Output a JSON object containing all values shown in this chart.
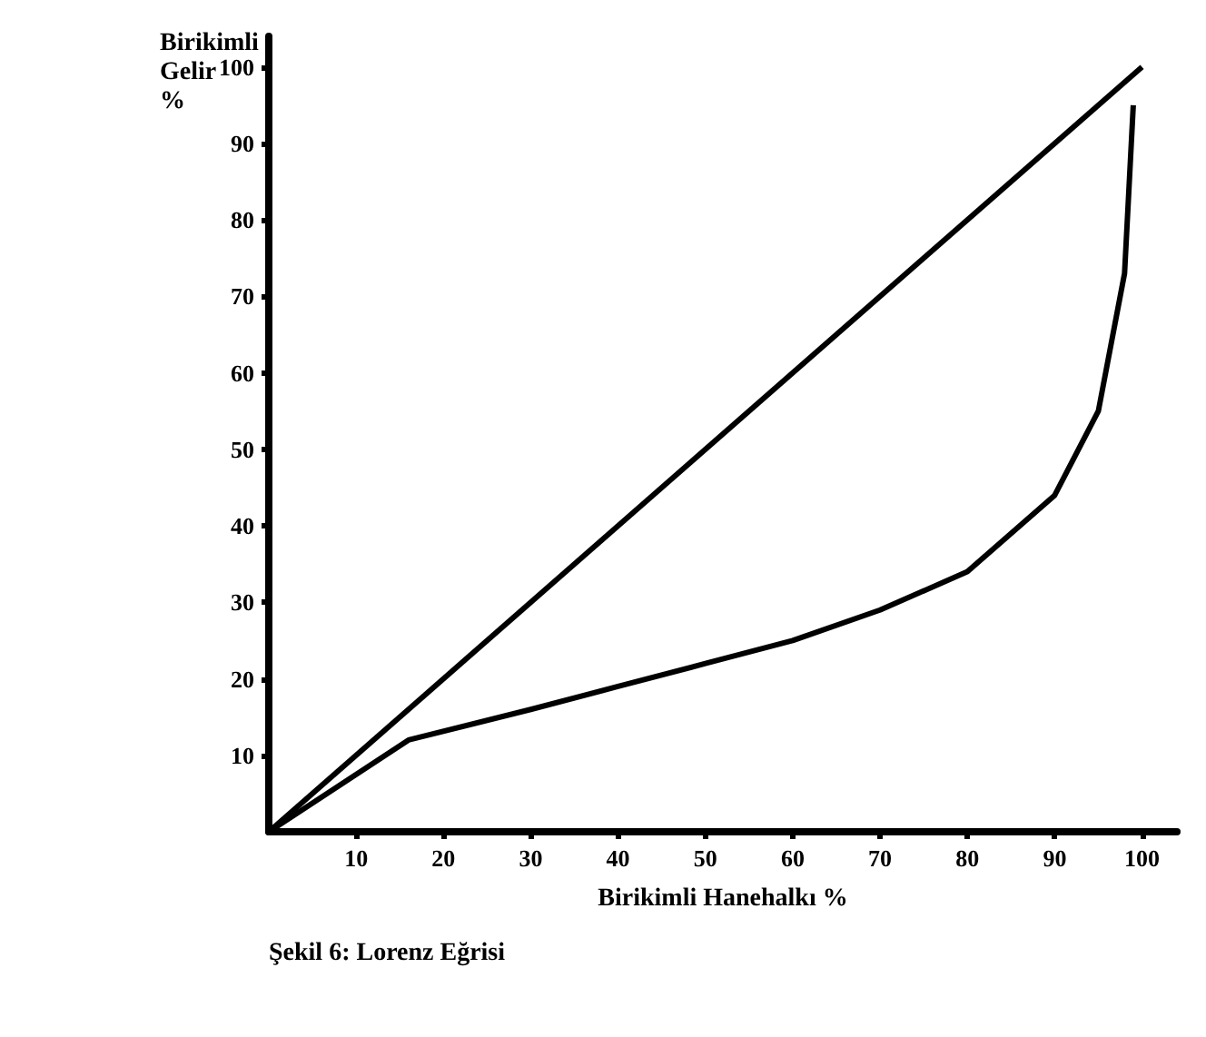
{
  "chart_data": {
    "type": "line",
    "xlabel": "Birikimli Hanehalkı %",
    "ylabel": "Birikimli Gelir %",
    "annotations": [
      "Şekil 6: Lorenz Eğrisi"
    ],
    "series": [
      {
        "color": "#000000",
        "x": [
          0,
          100
        ],
        "values": [
          0,
          100
        ]
      },
      {
        "color": "#000000",
        "x": [
          0,
          16,
          30,
          40,
          50,
          60,
          70,
          80,
          90,
          95,
          98,
          99
        ],
        "values": [
          0,
          12,
          16,
          19,
          22,
          25,
          29,
          34,
          44,
          55,
          73,
          95
        ]
      }
    ],
    "xlim": [
      0,
      104
    ],
    "ylim": [
      0,
      104
    ],
    "xticks": [
      10,
      20,
      30,
      40,
      50,
      60,
      70,
      80,
      90,
      100
    ],
    "yticks": [
      10,
      20,
      30,
      40,
      50,
      60,
      70,
      80,
      90,
      100
    ],
    "grid": false,
    "marker": "none",
    "line_style": "solid"
  }
}
